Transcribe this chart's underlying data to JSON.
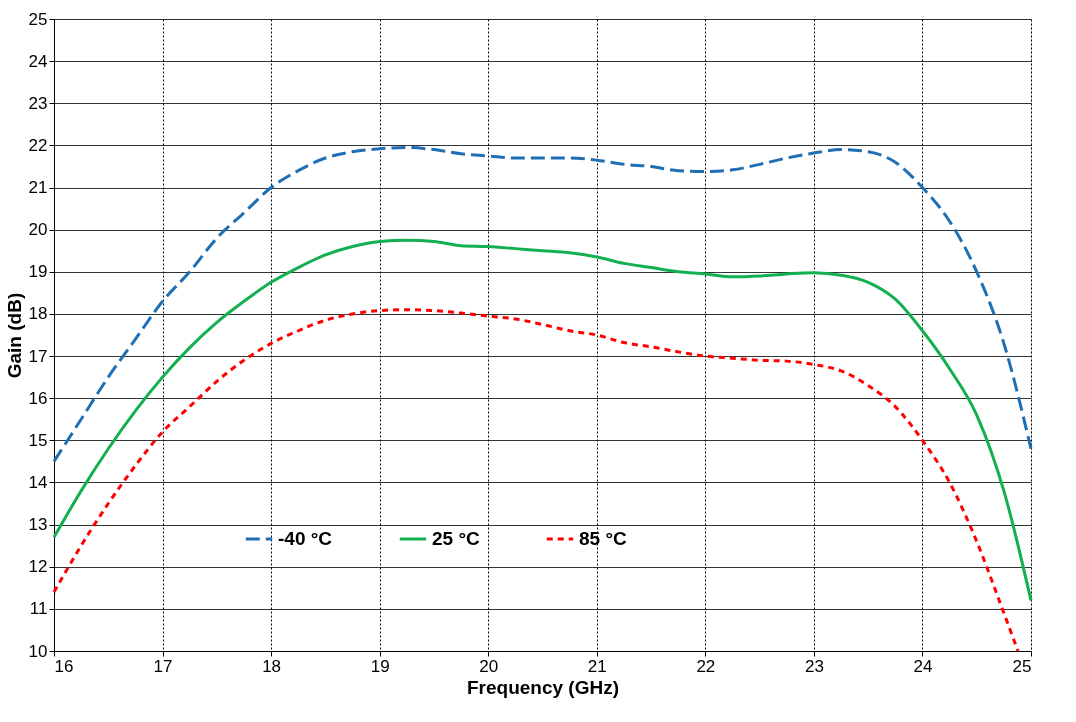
{
  "chart_data": {
    "type": "line",
    "xlabel": "Frequency (GHz)",
    "ylabel": "Gain  (dB)",
    "xlim": [
      16,
      25
    ],
    "xticks": [
      16,
      17,
      18,
      19,
      20,
      21,
      22,
      23,
      24,
      25
    ],
    "ylim": [
      10,
      25
    ],
    "yticks": [
      10,
      11,
      12,
      13,
      14,
      15,
      16,
      17,
      18,
      19,
      20,
      21,
      22,
      23,
      24,
      25
    ],
    "grid": true,
    "legend": "bottom",
    "marker": "none",
    "x": [
      16,
      16.25,
      16.5,
      16.75,
      17,
      17.25,
      17.5,
      17.75,
      18,
      18.25,
      18.5,
      18.75,
      19,
      19.25,
      19.5,
      19.75,
      20,
      20.25,
      20.5,
      20.75,
      21,
      21.25,
      21.5,
      21.75,
      22,
      22.25,
      22.5,
      22.75,
      23,
      23.25,
      23.5,
      23.75,
      24,
      24.25,
      24.5,
      24.75,
      25
    ],
    "series": [
      {
        "name": "-40 °C",
        "color": "#1f6fb5",
        "line_style": "dashed",
        "values": [
          14.5,
          15.5,
          16.5,
          17.4,
          18.3,
          19.0,
          19.8,
          20.4,
          21.0,
          21.4,
          21.7,
          21.85,
          21.92,
          21.95,
          21.9,
          21.8,
          21.75,
          21.7,
          21.7,
          21.7,
          21.65,
          21.55,
          21.5,
          21.4,
          21.38,
          21.42,
          21.55,
          21.7,
          21.82,
          21.9,
          21.85,
          21.6,
          21.0,
          20.2,
          19.0,
          17.3,
          14.8
        ]
      },
      {
        "name": "25 °C",
        "color": "#12b050",
        "line_style": "solid",
        "values": [
          12.7,
          13.8,
          14.8,
          15.7,
          16.5,
          17.2,
          17.8,
          18.3,
          18.75,
          19.1,
          19.4,
          19.6,
          19.72,
          19.75,
          19.72,
          19.62,
          19.6,
          19.55,
          19.5,
          19.45,
          19.35,
          19.2,
          19.1,
          19.0,
          18.95,
          18.88,
          18.9,
          18.95,
          18.98,
          18.92,
          18.75,
          18.35,
          17.6,
          16.7,
          15.6,
          13.8,
          11.2
        ]
      },
      {
        "name": "85 °C",
        "color": "#ff0000",
        "line_style": "dashed",
        "x": [
          16,
          16.25,
          16.5,
          16.75,
          17,
          17.25,
          17.5,
          17.75,
          18,
          18.25,
          18.5,
          18.75,
          19,
          19.25,
          19.5,
          19.75,
          20,
          20.25,
          20.5,
          20.75,
          21,
          21.25,
          21.5,
          21.75,
          22,
          22.25,
          22.5,
          22.75,
          23,
          23.25,
          23.5,
          23.75,
          24,
          24.25,
          24.5,
          24.75,
          24.88
        ],
        "values": [
          11.4,
          12.5,
          13.5,
          14.4,
          15.2,
          15.8,
          16.4,
          16.9,
          17.3,
          17.6,
          17.85,
          18.0,
          18.08,
          18.1,
          18.08,
          18.02,
          17.95,
          17.88,
          17.75,
          17.6,
          17.5,
          17.32,
          17.22,
          17.1,
          17.0,
          16.95,
          16.9,
          16.88,
          16.8,
          16.65,
          16.3,
          15.8,
          15.0,
          14.0,
          12.6,
          10.9,
          10.0
        ]
      }
    ]
  }
}
